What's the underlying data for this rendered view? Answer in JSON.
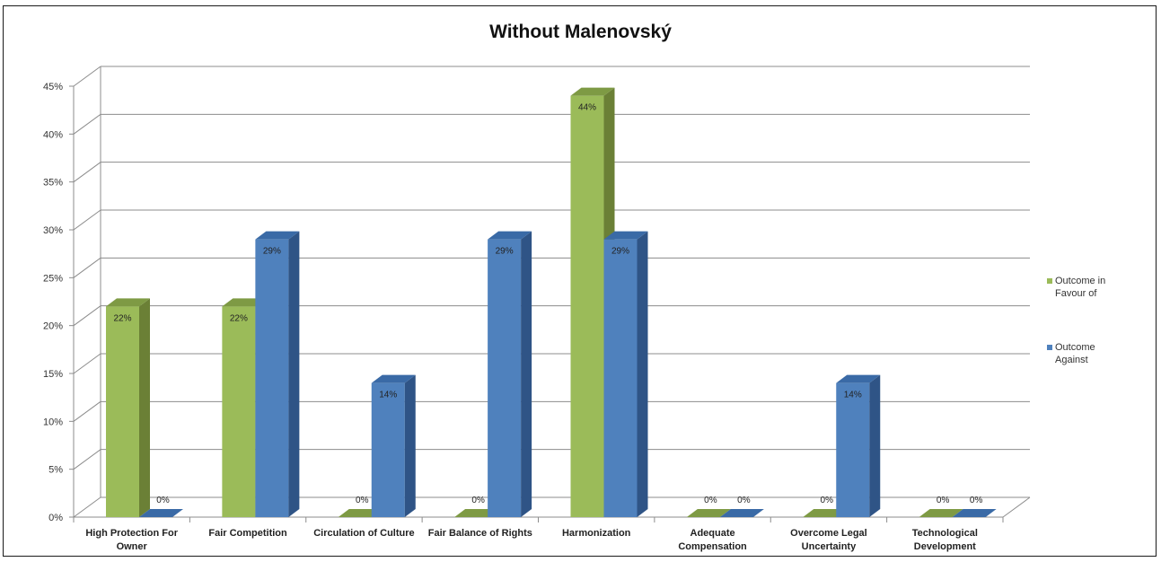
{
  "chart_data": {
    "type": "bar",
    "title": "Without Malenovský",
    "xlabel": "",
    "ylabel": "",
    "ylim": [
      0,
      45
    ],
    "yticks": [
      "0%",
      "5%",
      "10%",
      "15%",
      "20%",
      "25%",
      "30%",
      "35%",
      "40%",
      "45%"
    ],
    "grid": true,
    "legend_position": "right",
    "categories": [
      [
        "High Protection For",
        "Owner"
      ],
      [
        "Fair Competition"
      ],
      [
        "Circulation of Culture"
      ],
      [
        "Fair Balance of Rights"
      ],
      [
        "Harmonization"
      ],
      [
        "Adequate",
        "Compensation"
      ],
      [
        "Overcome Legal",
        "Uncertainty"
      ],
      [
        "Technological",
        "Development"
      ]
    ],
    "series": [
      {
        "name": "Outcome in Favour of",
        "legend_lines": [
          "Outcome in",
          "Favour of"
        ],
        "color": "#9bbb59",
        "side_color": "#6b8036",
        "top_color": "#7e9a44",
        "values": [
          22,
          22,
          0,
          0,
          44,
          0,
          0,
          0
        ],
        "labels": [
          "22%",
          "22%",
          "0%",
          "0%",
          "44%",
          "0%",
          "0%",
          "0%"
        ]
      },
      {
        "name": "Outcome Against",
        "legend_lines": [
          "Outcome",
          "Against"
        ],
        "color": "#4f81bd",
        "side_color": "#2f5486",
        "top_color": "#3a6aa6",
        "values": [
          0,
          29,
          14,
          29,
          29,
          0,
          14,
          0
        ],
        "labels": [
          "0%",
          "29%",
          "14%",
          "29%",
          "29%",
          "0%",
          "14%",
          "0%"
        ]
      }
    ]
  }
}
